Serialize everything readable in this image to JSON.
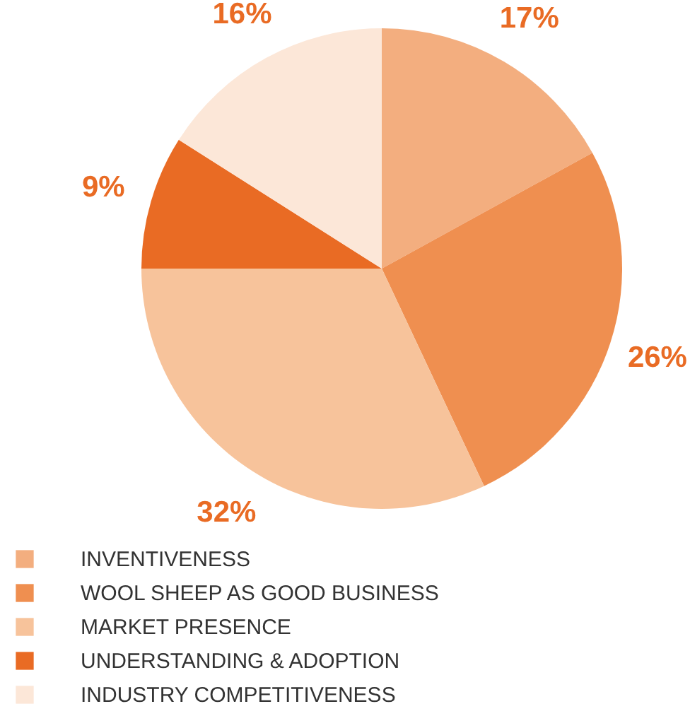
{
  "chart_data": {
    "type": "pie",
    "categories": [
      "INVENTIVENESS",
      "WOOL SHEEP AS GOOD BUSINESS",
      "MARKET PRESENCE",
      "UNDERSTANDING & ADOPTION",
      "INDUSTRY COMPETITIVENESS"
    ],
    "values": [
      17,
      26,
      32,
      9,
      16
    ],
    "colors": [
      "#f3ae7f",
      "#ef8f50",
      "#f7c39b",
      "#e96b24",
      "#fce7d8"
    ],
    "value_labels": [
      "17%",
      "26%",
      "32%",
      "9%",
      "16%"
    ],
    "legend": "bottom left"
  }
}
